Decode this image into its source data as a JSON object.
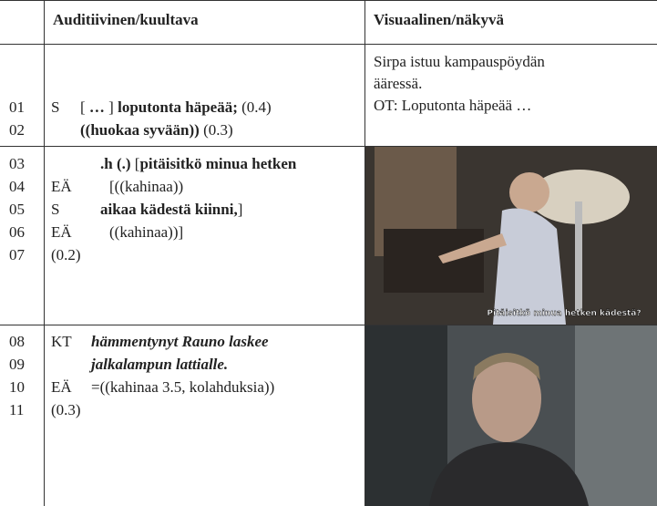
{
  "header": {
    "col_audio": "Auditiivinen/kuultava",
    "col_visual": "Visuaalinen/näkyvä"
  },
  "rows": [
    {
      "lines": [
        {
          "num": "01",
          "speaker": "S",
          "segments": [
            {
              "text": "[",
              "style": "normal"
            },
            {
              "text": " … ",
              "style": "bold"
            },
            {
              "text": "] ",
              "style": "normal"
            },
            {
              "text": "loputonta häpeää;",
              "style": "bold"
            },
            {
              "text": " (0.4)",
              "style": "normal"
            }
          ]
        },
        {
          "num": "02",
          "speaker": "",
          "segments": [
            {
              "text": "((huokaa syvään))",
              "style": "bold"
            },
            {
              "text": " (0.3)",
              "style": "normal"
            }
          ]
        }
      ],
      "visual": {
        "lines": [
          "Sirpa istuu kampauspöydän",
          "ääressä.",
          "OT: Loputonta häpeää …"
        ]
      }
    },
    {
      "lines": [
        {
          "num": "03",
          "speaker": "",
          "segments": [
            {
              "text": ".h (.) ",
              "style": "bold"
            },
            {
              "text": "[",
              "style": "normal"
            },
            {
              "text": "pitäisitkö minua hetken",
              "style": "bold"
            }
          ]
        },
        {
          "num": "04",
          "speaker": "EÄ",
          "segments": [
            {
              "text": "[((kahinaa))",
              "style": "normal"
            }
          ]
        },
        {
          "num": "05",
          "speaker": "S",
          "segments": [
            {
              "text": "aikaa kädestä kiinni,",
              "style": "bold"
            },
            {
              "text": "]",
              "style": "normal"
            }
          ]
        },
        {
          "num": "06",
          "speaker": "EÄ",
          "segments": [
            {
              "text": "((kahinaa))]",
              "style": "normal"
            }
          ]
        },
        {
          "num": "07",
          "speaker": "(0.2)",
          "segments": []
        }
      ],
      "visual": {
        "subtitle": "Pitäisitkö minua hetken kädestä?"
      }
    },
    {
      "lines": [
        {
          "num": "08",
          "speaker": "KT",
          "segments": [
            {
              "text": "hämmentynyt Rauno laskee",
              "style": "bold-italic"
            }
          ]
        },
        {
          "num": "09",
          "speaker": "",
          "segments": [
            {
              "text": "jalkalampun lattialle.",
              "style": "bold-italic"
            }
          ]
        },
        {
          "num": "10",
          "speaker": "EÄ",
          "segments": [
            {
              "text": "=((kahinaa 3.5, kolahduksia))",
              "style": "normal"
            }
          ]
        },
        {
          "num": "11",
          "speaker": "(0.3)",
          "segments": []
        }
      ],
      "visual": {}
    }
  ]
}
